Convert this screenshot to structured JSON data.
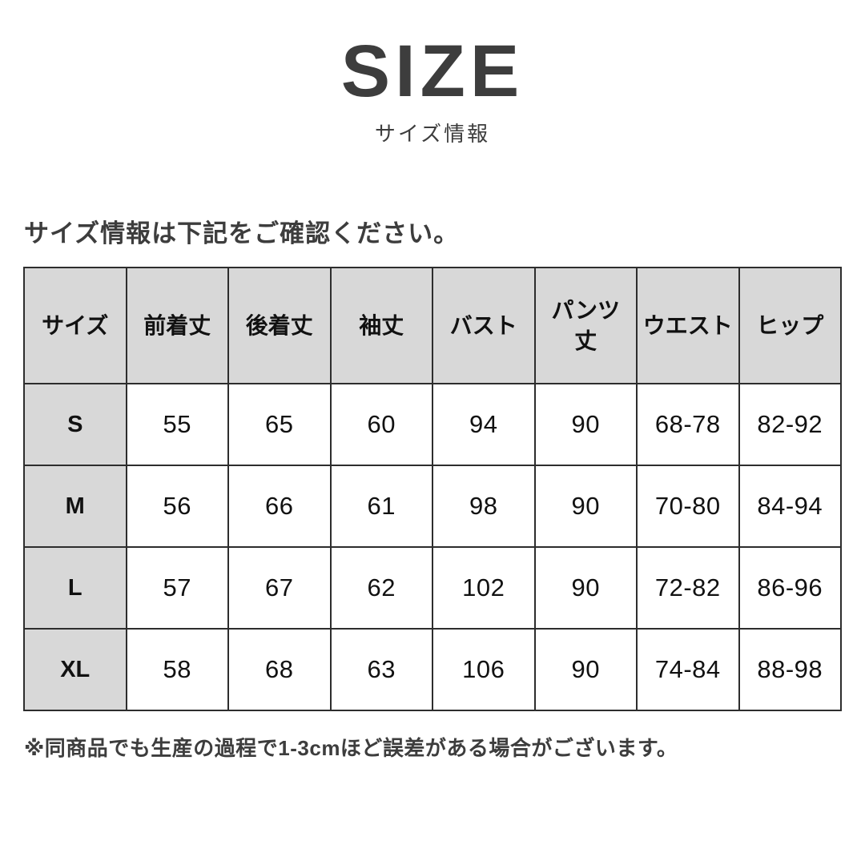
{
  "header": {
    "title": "SIZE",
    "subtitle": "サイズ情報"
  },
  "intro": {
    "text": "サイズ情報は下記をご確認ください。"
  },
  "size_table": {
    "columns": [
      "サイズ",
      "前着丈",
      "後着丈",
      "袖丈",
      "バスト",
      "パンツ\n丈",
      "ウエスト",
      "ヒップ"
    ],
    "rows": [
      {
        "size": "S",
        "values": [
          "55",
          "65",
          "60",
          "94",
          "90",
          "68-78",
          "82-92"
        ]
      },
      {
        "size": "M",
        "values": [
          "56",
          "66",
          "61",
          "98",
          "90",
          "70-80",
          "84-94"
        ]
      },
      {
        "size": "L",
        "values": [
          "57",
          "67",
          "62",
          "102",
          "90",
          "72-82",
          "86-96"
        ]
      },
      {
        "size": "XL",
        "values": [
          "58",
          "68",
          "63",
          "106",
          "90",
          "74-84",
          "88-98"
        ]
      }
    ]
  },
  "note": {
    "text": "※同商品でも生産の過程で1-3cmほど誤差がある場合がございます。"
  },
  "colors": {
    "background": "#ffffff",
    "heading_text": "#3d3d3d",
    "table_text": "#111111",
    "table_header_bg": "#d8d8d8",
    "table_border": "#2d2d2d"
  }
}
